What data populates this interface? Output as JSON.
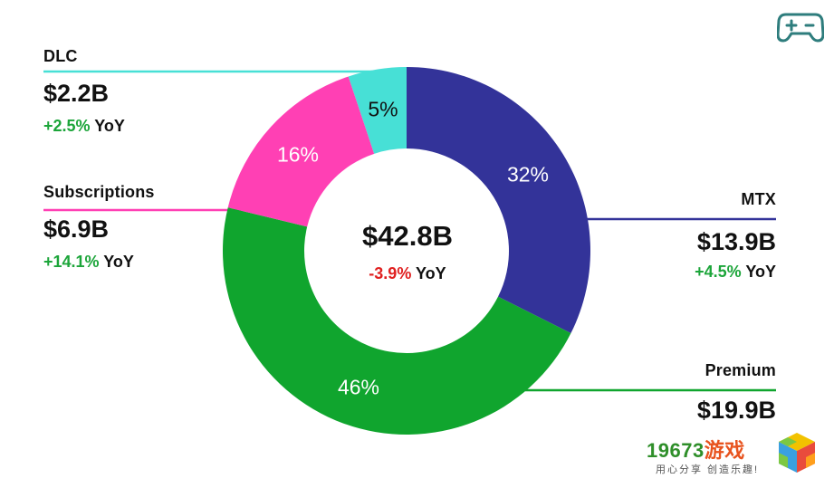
{
  "chart_data": {
    "type": "donut",
    "total": "$42.8B",
    "total_yoy": {
      "change": "-3.9%",
      "suffix": "YoY"
    },
    "segments": [
      {
        "key": "mtx",
        "name": "MTX",
        "value": "$13.9B",
        "value_num": 13.9,
        "share": 32,
        "share_label": "32%",
        "yoy": {
          "change": "+4.5%",
          "suffix": "YoY"
        },
        "color": "#333399"
      },
      {
        "key": "premium",
        "name": "Premium",
        "value": "$19.9B",
        "value_num": 19.9,
        "share": 46,
        "share_label": "46%",
        "yoy": {
          "change": "",
          "suffix": ""
        },
        "color": "#10a52e"
      },
      {
        "key": "subscriptions",
        "name": "Subscriptions",
        "value": "$6.9B",
        "value_num": 6.9,
        "share": 16,
        "share_label": "16%",
        "yoy": {
          "change": "+14.1%",
          "suffix": "YoY"
        },
        "color": "#ff40b4"
      },
      {
        "key": "dlc",
        "name": "DLC",
        "value": "$2.2B",
        "value_num": 2.2,
        "share": 5,
        "share_label": "5%",
        "yoy": {
          "change": "+2.5%",
          "suffix": "YoY"
        },
        "color": "#47e0d6"
      }
    ],
    "colors": {
      "positive": "#1ca53a",
      "negative": "#e02020"
    }
  },
  "icons": {
    "logo": "game-controller-icon"
  },
  "watermark": {
    "title_digits": "19673",
    "title_cn": "游戏",
    "subtitle": "用心分享 创造乐趣!"
  }
}
